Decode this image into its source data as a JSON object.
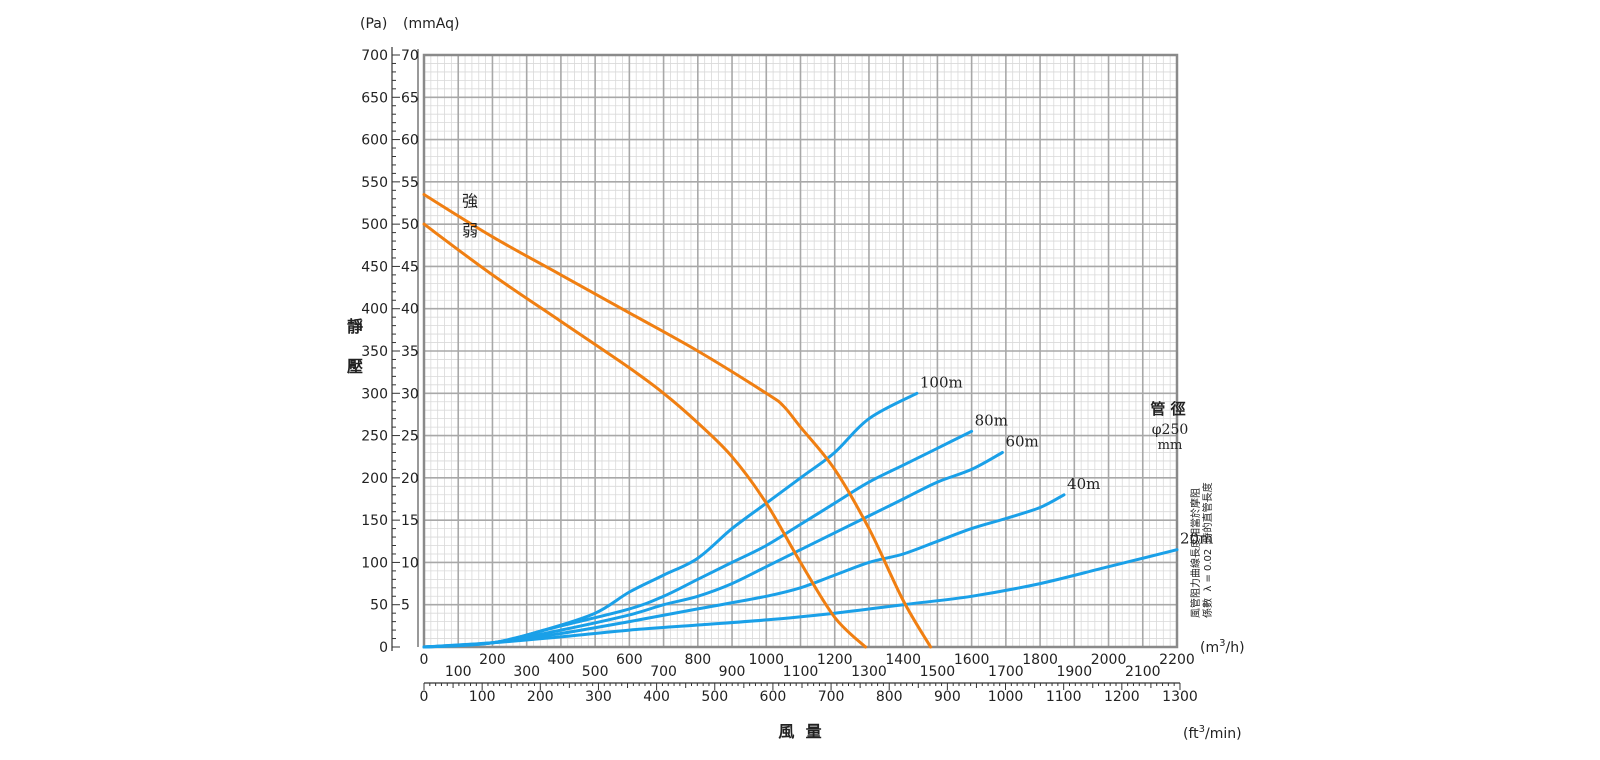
{
  "chart_data": {
    "type": "line",
    "units": {
      "pa": "(Pa)",
      "mmaq": "(mmAq)",
      "m3h_open": "(m",
      "m3h_sup": "3",
      "m3h_close": "/h)",
      "cfm_open": "(ft",
      "cfm_sup": "3",
      "cfm_close": "/min)"
    },
    "ylabel": [
      "靜",
      "壓"
    ],
    "xlabel": "風  量",
    "x_m3h_range": [
      0,
      2200
    ],
    "y_mmaq_range": [
      0,
      70
    ],
    "y_pa_ticks": [
      "0",
      "50",
      "100",
      "150",
      "200",
      "250",
      "300",
      "350",
      "400",
      "450",
      "500",
      "550",
      "600",
      "650",
      "700"
    ],
    "y_mmaq_ticks": [
      "5",
      "10",
      "15",
      "20",
      "25",
      "30",
      "35",
      "40",
      "45",
      "50",
      "55",
      "60",
      "65",
      "70"
    ],
    "x_m3h_ticks_top": [
      "0",
      "200",
      "400",
      "600",
      "800",
      "1000",
      "1200",
      "1400",
      "1600",
      "1800",
      "2000",
      "2200"
    ],
    "x_m3h_ticks_bottom": [
      "100",
      "300",
      "500",
      "700",
      "900",
      "1100",
      "1300",
      "1500",
      "1700",
      "1900",
      "2100"
    ],
    "x_cfm_ticks": [
      "0",
      "100",
      "200",
      "300",
      "400",
      "500",
      "600",
      "700",
      "800",
      "900",
      "1000",
      "1100",
      "1200",
      "1300"
    ],
    "fan_curves": [
      {
        "name": "強",
        "color": "#f07f12",
        "points": [
          [
            0,
            53.5
          ],
          [
            200,
            48.5
          ],
          [
            400,
            44
          ],
          [
            600,
            39.5
          ],
          [
            800,
            35
          ],
          [
            1000,
            30
          ],
          [
            1050,
            28.5
          ],
          [
            1100,
            26
          ],
          [
            1200,
            21
          ],
          [
            1300,
            14
          ],
          [
            1400,
            5.5
          ],
          [
            1480,
            0
          ]
        ]
      },
      {
        "name": "弱",
        "color": "#f07f12",
        "points": [
          [
            0,
            50
          ],
          [
            200,
            44
          ],
          [
            400,
            38.5
          ],
          [
            600,
            33
          ],
          [
            700,
            30
          ],
          [
            800,
            26.5
          ],
          [
            900,
            22.5
          ],
          [
            1000,
            17
          ],
          [
            1100,
            10
          ],
          [
            1200,
            3.5
          ],
          [
            1290,
            0
          ]
        ]
      }
    ],
    "duct_curves": [
      {
        "name": "100m",
        "color": "#1aa0e8",
        "points": [
          [
            0,
            0
          ],
          [
            200,
            0.5
          ],
          [
            350,
            2
          ],
          [
            500,
            4
          ],
          [
            600,
            6.5
          ],
          [
            700,
            8.5
          ],
          [
            800,
            10.5
          ],
          [
            900,
            14
          ],
          [
            1000,
            17
          ],
          [
            1100,
            20
          ],
          [
            1200,
            23
          ],
          [
            1300,
            27
          ],
          [
            1440,
            30
          ]
        ]
      },
      {
        "name": "80m",
        "color": "#1aa0e8",
        "points": [
          [
            0,
            0
          ],
          [
            200,
            0.5
          ],
          [
            400,
            2.5
          ],
          [
            600,
            4.5
          ],
          [
            700,
            6
          ],
          [
            800,
            8
          ],
          [
            900,
            10
          ],
          [
            1000,
            12
          ],
          [
            1100,
            14.5
          ],
          [
            1200,
            17
          ],
          [
            1300,
            19.5
          ],
          [
            1400,
            21.5
          ],
          [
            1500,
            23.5
          ],
          [
            1600,
            25.5
          ]
        ]
      },
      {
        "name": "60m",
        "color": "#1aa0e8",
        "points": [
          [
            0,
            0
          ],
          [
            200,
            0.5
          ],
          [
            400,
            2
          ],
          [
            600,
            3.8
          ],
          [
            700,
            5
          ],
          [
            800,
            6
          ],
          [
            900,
            7.5
          ],
          [
            1000,
            9.5
          ],
          [
            1100,
            11.5
          ],
          [
            1200,
            13.5
          ],
          [
            1300,
            15.5
          ],
          [
            1400,
            17.5
          ],
          [
            1500,
            19.5
          ],
          [
            1600,
            21
          ],
          [
            1690,
            23
          ]
        ]
      },
      {
        "name": "40m",
        "color": "#1aa0e8",
        "points": [
          [
            0,
            0
          ],
          [
            200,
            0.5
          ],
          [
            400,
            1.6
          ],
          [
            600,
            3
          ],
          [
            800,
            4.5
          ],
          [
            1000,
            6
          ],
          [
            1100,
            7
          ],
          [
            1200,
            8.5
          ],
          [
            1300,
            10
          ],
          [
            1400,
            11
          ],
          [
            1500,
            12.5
          ],
          [
            1600,
            14
          ],
          [
            1700,
            15.2
          ],
          [
            1800,
            16.5
          ],
          [
            1870,
            18
          ]
        ]
      },
      {
        "name": "20m",
        "color": "#1aa0e8",
        "points": [
          [
            0,
            0
          ],
          [
            200,
            0.5
          ],
          [
            400,
            1.2
          ],
          [
            600,
            2
          ],
          [
            800,
            2.6
          ],
          [
            1000,
            3.2
          ],
          [
            1200,
            4
          ],
          [
            1400,
            5
          ],
          [
            1600,
            6
          ],
          [
            1800,
            7.5
          ],
          [
            2000,
            9.5
          ],
          [
            2200,
            11.5
          ]
        ]
      }
    ],
    "duct_note": {
      "title": "管 徑",
      "diameter": "φ250",
      "unit": "mm"
    },
    "side_note": [
      "風管阻力曲線長度相當於摩阻",
      "係數  λ = 0.02  時的直管長度"
    ]
  }
}
